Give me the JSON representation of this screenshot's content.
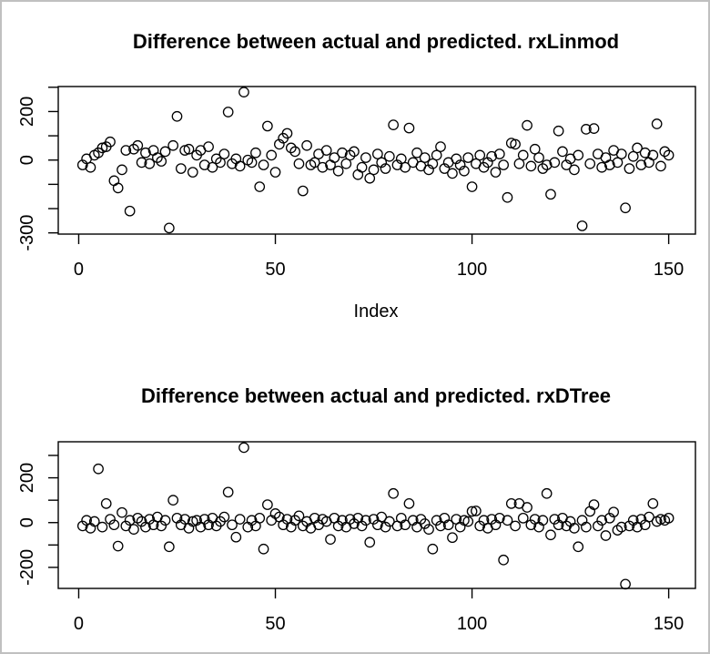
{
  "figure": {
    "background": "#ffffff",
    "border_color": "#c0c0c0",
    "foreground": "#000000"
  },
  "chart_data": [
    {
      "type": "scatter",
      "title": "Difference between actual and predicted. rxLinmod",
      "xlabel": "Index",
      "ylabel": "",
      "marker": "open-circle",
      "grid": false,
      "legend": null,
      "x_start": 1,
      "xlim": [
        -5.2,
        156.8
      ],
      "ylim": [
        -305,
        303
      ],
      "xticks": [
        {
          "v": 0,
          "label": "0"
        },
        {
          "v": 50,
          "label": "50"
        },
        {
          "v": 100,
          "label": "100"
        },
        {
          "v": 150,
          "label": "150"
        }
      ],
      "yticks": [
        {
          "v": 300,
          "label": ""
        },
        {
          "v": 200,
          "label": "200"
        },
        {
          "v": 100,
          "label": ""
        },
        {
          "v": 0,
          "label": "0"
        },
        {
          "v": -100,
          "label": ""
        },
        {
          "v": -200,
          "label": ""
        },
        {
          "v": -300,
          "label": "-300"
        }
      ],
      "values": [
        -20,
        5,
        -30,
        20,
        30,
        50,
        55,
        75,
        -85,
        -115,
        -40,
        40,
        -210,
        45,
        60,
        -10,
        30,
        -15,
        40,
        10,
        -5,
        35,
        -280,
        60,
        180,
        -35,
        40,
        45,
        -50,
        20,
        40,
        -20,
        55,
        -30,
        5,
        -10,
        25,
        198,
        -15,
        5,
        -25,
        280,
        0,
        -10,
        30,
        -110,
        -20,
        140,
        20,
        -50,
        65,
        90,
        110,
        50,
        35,
        -15,
        -127,
        60,
        -20,
        -10,
        25,
        -30,
        40,
        -20,
        10,
        -45,
        30,
        -15,
        20,
        35,
        -60,
        -30,
        10,
        -75,
        -40,
        25,
        -10,
        -35,
        15,
        145,
        -20,
        5,
        -30,
        132,
        -10,
        30,
        -25,
        10,
        -40,
        -15,
        20,
        55,
        -35,
        -10,
        -55,
        5,
        -20,
        -45,
        10,
        -110,
        -15,
        20,
        -30,
        -10,
        15,
        -50,
        25,
        -20,
        -154,
        70,
        65,
        -15,
        20,
        143,
        -25,
        45,
        10,
        -35,
        -20,
        -141,
        -10,
        120,
        35,
        -20,
        5,
        -40,
        20,
        -271,
        127,
        -15,
        130,
        25,
        -30,
        10,
        -20,
        40,
        -10,
        25,
        -197,
        -35,
        15,
        50,
        -20,
        30,
        -10,
        20,
        149,
        -25,
        35,
        20
      ]
    },
    {
      "type": "scatter",
      "title": "Difference between actual and predicted. rxDTree",
      "xlabel": "",
      "ylabel": "",
      "marker": "open-circle",
      "grid": false,
      "legend": null,
      "x_start": 1,
      "xlim": [
        -5.2,
        156.8
      ],
      "ylim": [
        -294,
        361
      ],
      "xticks": [
        {
          "v": 0,
          "label": "0"
        },
        {
          "v": 50,
          "label": "50"
        },
        {
          "v": 100,
          "label": "100"
        },
        {
          "v": 150,
          "label": "150"
        }
      ],
      "yticks": [
        {
          "v": 300,
          "label": ""
        },
        {
          "v": 200,
          "label": "200"
        },
        {
          "v": 100,
          "label": ""
        },
        {
          "v": 0,
          "label": "0"
        },
        {
          "v": -100,
          "label": ""
        },
        {
          "v": -200,
          "label": "-200"
        }
      ],
      "values": [
        -15,
        10,
        -25,
        5,
        240,
        -20,
        85,
        15,
        -10,
        -105,
        45,
        -15,
        10,
        -30,
        20,
        5,
        -20,
        15,
        -10,
        25,
        -15,
        10,
        -108,
        100,
        20,
        -10,
        15,
        -25,
        5,
        10,
        -20,
        15,
        -10,
        20,
        -15,
        5,
        25,
        136,
        -10,
        -65,
        15,
        335,
        -20,
        10,
        -15,
        20,
        -118,
        80,
        10,
        40,
        25,
        -10,
        15,
        -20,
        10,
        30,
        -15,
        5,
        -25,
        20,
        -10,
        15,
        5,
        -75,
        20,
        -15,
        10,
        -20,
        15,
        -5,
        20,
        -15,
        10,
        -88,
        15,
        -10,
        25,
        -20,
        5,
        130,
        -15,
        20,
        -10,
        85,
        10,
        -20,
        15,
        -5,
        -30,
        -118,
        10,
        -15,
        20,
        -10,
        -67,
        15,
        -20,
        10,
        5,
        50,
        52,
        -15,
        10,
        -25,
        15,
        -10,
        20,
        -167,
        10,
        85,
        -15,
        85,
        20,
        68,
        -10,
        15,
        -20,
        10,
        130,
        -55,
        15,
        -10,
        20,
        -15,
        5,
        -25,
        -108,
        10,
        -20,
        50,
        80,
        -15,
        10,
        -58,
        20,
        47,
        -34,
        -20,
        -275,
        -15,
        10,
        -20,
        15,
        -10,
        25,
        85,
        5,
        15,
        10,
        20
      ]
    }
  ]
}
